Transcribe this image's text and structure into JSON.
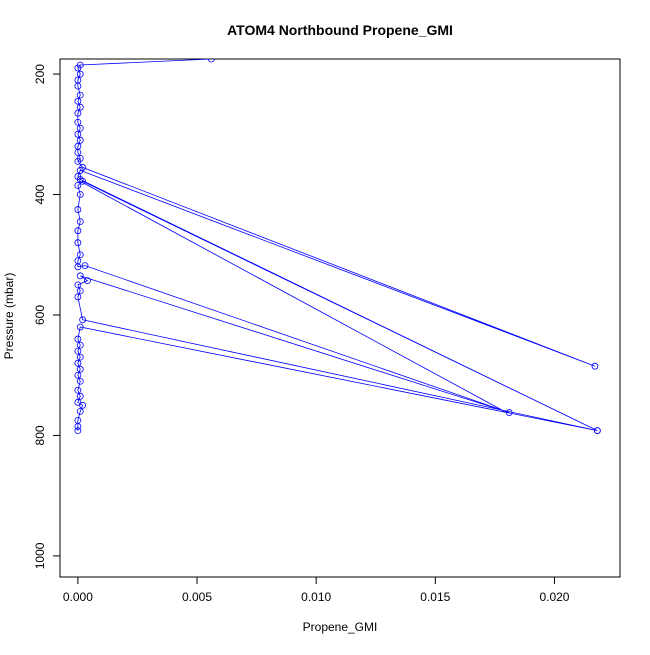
{
  "chart_data": {
    "type": "line",
    "title": "ATOM4 Northbound Propene_GMI",
    "xlabel": "Propene_GMI",
    "ylabel": "Pressure (mbar)",
    "xlim": [
      -0.00075,
      0.02275
    ],
    "ylim": [
      1035,
      175
    ],
    "y_reversed": true,
    "x_ticks": [
      0.0,
      0.005,
      0.01,
      0.015,
      0.02
    ],
    "x_tick_labels": [
      "0.000",
      "0.005",
      "0.010",
      "0.015",
      "0.020"
    ],
    "y_ticks": [
      200,
      400,
      600,
      800,
      1000
    ],
    "y_tick_labels": [
      "200",
      "400",
      "600",
      "800",
      "1000"
    ],
    "grid": false,
    "legend": "none",
    "series_color": "#0000ff",
    "series": [
      {
        "marker": "open-circle",
        "points": [
          [
            0.0056,
            175
          ],
          [
            0.0001,
            185
          ],
          [
            0.0,
            190
          ],
          [
            0.0001,
            200
          ],
          [
            0.0,
            210
          ],
          [
            0.0,
            220
          ],
          [
            0.0001,
            235
          ],
          [
            0.0,
            245
          ],
          [
            0.0001,
            255
          ],
          [
            0.0,
            265
          ],
          [
            0.0,
            280
          ],
          [
            0.0001,
            290
          ],
          [
            0.0,
            300
          ],
          [
            0.0001,
            310
          ],
          [
            0.0,
            320
          ],
          [
            0.0,
            330
          ],
          [
            0.0001,
            340
          ],
          [
            0.0,
            345
          ],
          [
            0.0002,
            355
          ],
          [
            0.0217,
            685
          ],
          [
            0.0001,
            360
          ],
          [
            0.0,
            370
          ],
          [
            0.0001,
            375
          ],
          [
            0.0218,
            792
          ],
          [
            0.0002,
            378
          ],
          [
            0.0,
            385
          ],
          [
            0.0001,
            400
          ],
          [
            0.0,
            425
          ],
          [
            0.0001,
            445
          ],
          [
            0.0,
            460
          ],
          [
            0.0,
            480
          ],
          [
            0.0001,
            500
          ],
          [
            0.0,
            510
          ],
          [
            0.0,
            520
          ],
          [
            0.0003,
            518
          ],
          [
            0.0181,
            762
          ],
          [
            0.0001,
            535
          ],
          [
            0.0004,
            543
          ],
          [
            0.0,
            550
          ],
          [
            0.0001,
            560
          ],
          [
            0.0,
            570
          ],
          [
            0.0002,
            608
          ],
          [
            0.0218,
            792
          ],
          [
            0.0001,
            620
          ],
          [
            0.0,
            640
          ],
          [
            0.0001,
            650
          ],
          [
            0.0,
            660
          ],
          [
            0.0001,
            670
          ],
          [
            0.0,
            680
          ],
          [
            0.0001,
            690
          ],
          [
            0.0,
            700
          ],
          [
            0.0001,
            710
          ],
          [
            0.0,
            725
          ],
          [
            0.0001,
            735
          ],
          [
            0.0,
            745
          ],
          [
            0.0002,
            750
          ],
          [
            0.0001,
            760
          ],
          [
            0.0,
            775
          ],
          [
            0.0,
            785
          ],
          [
            0.0,
            792
          ]
        ]
      },
      {
        "marker": "none",
        "points": [
          [
            0.0001,
            378
          ],
          [
            0.0179,
            760
          ]
        ]
      }
    ]
  }
}
